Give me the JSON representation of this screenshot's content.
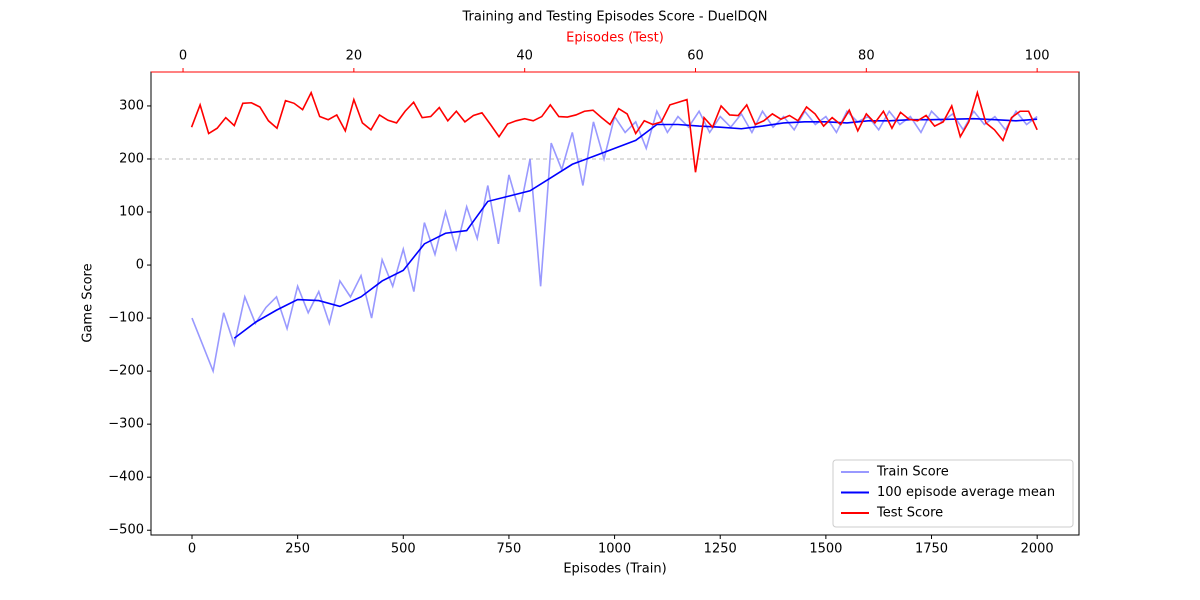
{
  "chart_data": {
    "type": "line",
    "title": "Training and Testing Episodes Score - DuelDQN",
    "xlabel": "Episodes (Train)",
    "x2label": "Episodes (Test)",
    "ylabel": "Game Score",
    "xlim": [
      -97,
      2099
    ],
    "xticks": [
      0,
      250,
      500,
      750,
      1000,
      1250,
      1500,
      1750,
      2000
    ],
    "x2lim": [
      -3.75,
      104.9
    ],
    "x2ticks": [
      0,
      20,
      40,
      60,
      80,
      100
    ],
    "x2color": "#ff0000",
    "ylim": [
      -509,
      364
    ],
    "yticks": [
      {
        "value": -500,
        "label": "−500"
      },
      {
        "value": -400,
        "label": "−400"
      },
      {
        "value": -300,
        "label": "−300"
      },
      {
        "value": -200,
        "label": "−200"
      },
      {
        "value": -100,
        "label": "−100"
      },
      0,
      100,
      200,
      300
    ],
    "hline": {
      "y": 200,
      "color": "#bbbbbb"
    },
    "legend": "lower right",
    "series": [
      {
        "name": "Train Score",
        "color": "#9999ff",
        "axis": "x",
        "x": [
          0,
          25,
          50,
          75,
          100,
          125,
          150,
          175,
          200,
          225,
          250,
          275,
          300,
          325,
          350,
          375,
          400,
          425,
          450,
          475,
          500,
          525,
          550,
          575,
          600,
          625,
          650,
          675,
          700,
          725,
          750,
          775,
          800,
          825,
          850,
          875,
          900,
          925,
          950,
          975,
          1000,
          1025,
          1050,
          1075,
          1100,
          1125,
          1150,
          1175,
          1200,
          1225,
          1250,
          1275,
          1300,
          1325,
          1350,
          1375,
          1400,
          1425,
          1450,
          1475,
          1500,
          1525,
          1550,
          1575,
          1600,
          1625,
          1650,
          1675,
          1700,
          1725,
          1750,
          1775,
          1800,
          1825,
          1850,
          1875,
          1900,
          1925,
          1950,
          1975,
          2000
        ],
        "values": [
          -100,
          -150,
          -200,
          -90,
          -150,
          -60,
          -110,
          -80,
          -60,
          -120,
          -40,
          -90,
          -50,
          -110,
          -30,
          -60,
          -20,
          -100,
          10,
          -40,
          30,
          -50,
          80,
          20,
          100,
          30,
          110,
          50,
          150,
          40,
          170,
          100,
          200,
          -40,
          230,
          180,
          250,
          150,
          270,
          200,
          280,
          250,
          270,
          220,
          290,
          250,
          280,
          260,
          290,
          250,
          280,
          260,
          285,
          250,
          290,
          260,
          280,
          255,
          290,
          265,
          280,
          250,
          290,
          270,
          280,
          255,
          290,
          265,
          280,
          250,
          290,
          270,
          285,
          255,
          290,
          265,
          280,
          255,
          290,
          265,
          280
        ]
      },
      {
        "name": "100 episode average mean",
        "color": "#0000ff",
        "axis": "x",
        "x": [
          100,
          150,
          200,
          250,
          300,
          350,
          400,
          450,
          500,
          550,
          600,
          650,
          700,
          750,
          800,
          850,
          900,
          950,
          1000,
          1050,
          1100,
          1150,
          1200,
          1250,
          1300,
          1350,
          1400,
          1450,
          1500,
          1550,
          1600,
          1650,
          1700,
          1750,
          1800,
          1850,
          1900,
          1950,
          2000
        ],
        "values": [
          -138,
          -108,
          -85,
          -65,
          -67,
          -78,
          -60,
          -30,
          -10,
          40,
          60,
          65,
          120,
          130,
          140,
          165,
          190,
          205,
          220,
          235,
          265,
          265,
          262,
          260,
          257,
          262,
          268,
          270,
          270,
          268,
          272,
          272,
          274,
          274,
          275,
          276,
          274,
          272,
          275
        ]
      },
      {
        "name": "Test Score",
        "color": "#ff0000",
        "axis": "x2",
        "x": [
          1,
          2,
          3,
          4,
          5,
          6,
          7,
          8,
          9,
          10,
          11,
          12,
          13,
          14,
          15,
          16,
          17,
          18,
          19,
          20,
          21,
          22,
          23,
          24,
          25,
          26,
          27,
          28,
          29,
          30,
          31,
          32,
          33,
          34,
          35,
          36,
          37,
          38,
          39,
          40,
          41,
          42,
          43,
          44,
          45,
          46,
          47,
          48,
          49,
          50,
          51,
          52,
          53,
          54,
          55,
          56,
          57,
          58,
          59,
          60,
          61,
          62,
          63,
          64,
          65,
          66,
          67,
          68,
          69,
          70,
          71,
          72,
          73,
          74,
          75,
          76,
          77,
          78,
          79,
          80,
          81,
          82,
          83,
          84,
          85,
          86,
          87,
          88,
          89,
          90,
          91,
          92,
          93,
          94,
          95,
          96,
          97,
          98,
          99,
          100
        ],
        "values": [
          260,
          302,
          248,
          258,
          278,
          263,
          305,
          306,
          298,
          272,
          258,
          310,
          305,
          293,
          325,
          280,
          274,
          283,
          253,
          312,
          268,
          255,
          283,
          273,
          268,
          290,
          307,
          278,
          280,
          297,
          272,
          290,
          270,
          282,
          287,
          265,
          242,
          266,
          272,
          276,
          272,
          280,
          302,
          280,
          279,
          283,
          290,
          292,
          278,
          265,
          295,
          285,
          248,
          272,
          265,
          270,
          302,
          307,
          312,
          175,
          278,
          260,
          300,
          283,
          282,
          302,
          265,
          272,
          285,
          275,
          282,
          272,
          298,
          285,
          262,
          278,
          265,
          292,
          253,
          285,
          268,
          290,
          258,
          288,
          275,
          272,
          282,
          262,
          270,
          300,
          242,
          270,
          325,
          268,
          255,
          235,
          278,
          290,
          290,
          255
        ]
      }
    ]
  }
}
